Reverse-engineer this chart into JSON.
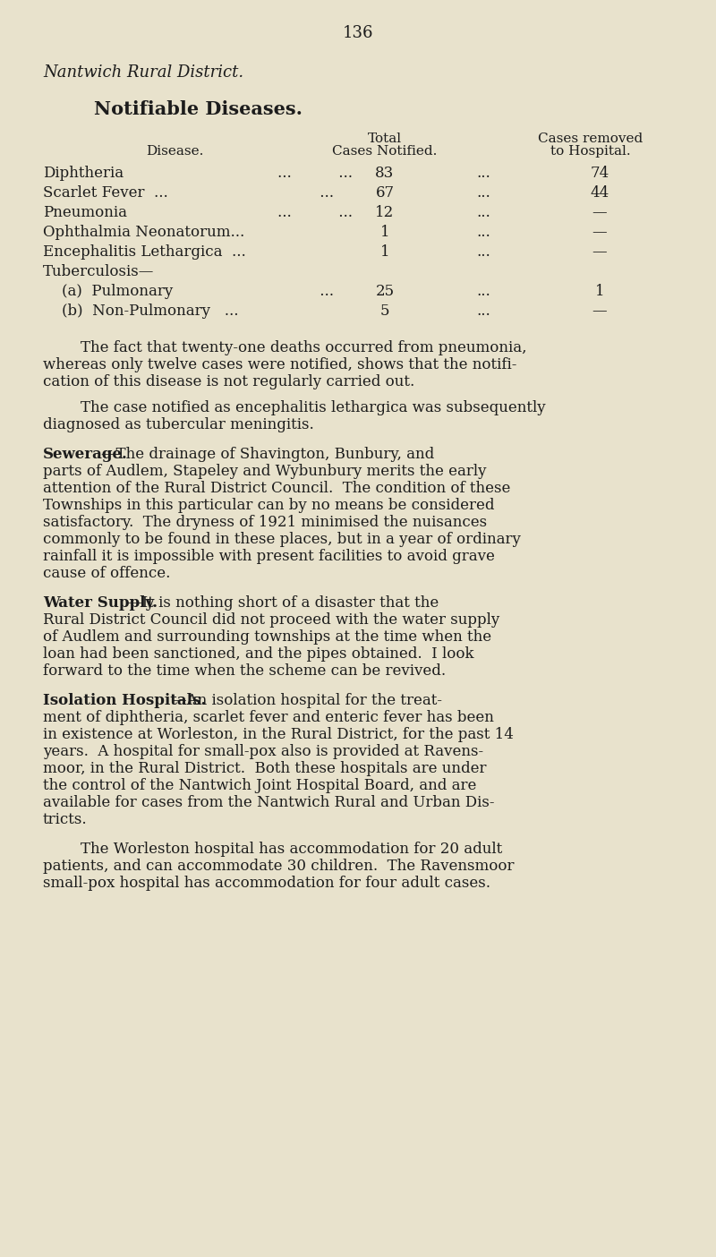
{
  "bg_color": "#e8e2cc",
  "text_color": "#1c1c1c",
  "page_number": "136",
  "italic_header": "Nantwich Rural District.",
  "bold_header": "Notifiable Diseases.",
  "col_header_disease": "Disease.",
  "col_header_total_line1": "Total",
  "col_header_total_line2": "Cases Notified.",
  "col_header_hosp_line1": "Cases removed",
  "col_header_hosp_line2": "to Hospital.",
  "table_rows": [
    {
      "disease": "Diphtheria",
      "mid_dots": "...          ...",
      "total": "83",
      "right_dots": "...",
      "hosp": "74"
    },
    {
      "disease": "Scarlet Fever  ...",
      "mid_dots": "         ...",
      "total": "67",
      "right_dots": "...",
      "hosp": "44"
    },
    {
      "disease": "Pneumonia",
      "mid_dots": "...          ...",
      "total": "12",
      "right_dots": "...",
      "hosp": "—"
    },
    {
      "disease": "Ophthalmia Neonatorum...",
      "mid_dots": "",
      "total": "1",
      "right_dots": "...",
      "hosp": "—"
    },
    {
      "disease": "Encephalitis Lethargica  ...",
      "mid_dots": "",
      "total": "1",
      "right_dots": "...",
      "hosp": "—"
    },
    {
      "disease": "Tuberculosis—",
      "mid_dots": "",
      "total": "",
      "right_dots": "",
      "hosp": ""
    },
    {
      "disease": "    (a)  Pulmonary",
      "mid_dots": "         ...",
      "total": "25",
      "right_dots": "...",
      "hosp": "1"
    },
    {
      "disease": "    (b)  Non-Pulmonary   ...",
      "mid_dots": "",
      "total": "5",
      "right_dots": "...",
      "hosp": "—"
    }
  ],
  "para1_indent": "        The fact that twenty-one deaths occurred from pneumonia,",
  "para1_cont": [
    "whereas only twelve cases were notified, shows that the notifi-",
    "cation of this disease is not regularly carried out."
  ],
  "para2_indent": "        The case notified as encephalitis lethargica was subsequently",
  "para2_cont": [
    "diagnosed as tubercular meningitis."
  ],
  "sew_line1_bold": "Sewerage.",
  "sew_line1_normal": "—The drainage of Shavington, Bunbury, and",
  "sew_lines": [
    "parts of Audlem, Stapeley and Wybunbury merits the early",
    "attention of the Rural District Council.  The condition of these",
    "Townships in this particular can by no means be considered",
    "satisfactory.  The dryness of 1921 minimised the nuisances",
    "commonly to be found in these places, but in a year of ordinary",
    "rainfall it is impossible with present facilities to avoid grave",
    "cause of offence."
  ],
  "water_line1_bold": "Water Supply.",
  "water_line1_normal": "—It is nothing short of a disaster that the",
  "water_lines": [
    "Rural District Council did not proceed with the water supply",
    "of Audlem and surrounding townships at the time when the",
    "loan had been sanctioned, and the pipes obtained.  I look",
    "forward to the time when the scheme can be revived."
  ],
  "iso_line1_bold": "Isolation Hospitals.",
  "iso_line1_normal": "—An isolation hospital for the treat-",
  "iso_lines": [
    "ment of diphtheria, scarlet fever and enteric fever has been",
    "in existence at Worleston, in the Rural District, for the past 14",
    "years.  A hospital for small-pox also is provided at Ravens-",
    "moor, in the Rural District.  Both these hospitals are under",
    "the control of the Nantwich Joint Hospital Board, and are",
    "available for cases from the Nantwich Rural and Urban Dis-",
    "tricts."
  ],
  "last_lines": [
    "        The Worleston hospital has accommodation for 20 adult",
    "patients, and can accommodate 30 children.  The Ravensmoor",
    "small-pox hospital has accommodation for four adult cases."
  ]
}
